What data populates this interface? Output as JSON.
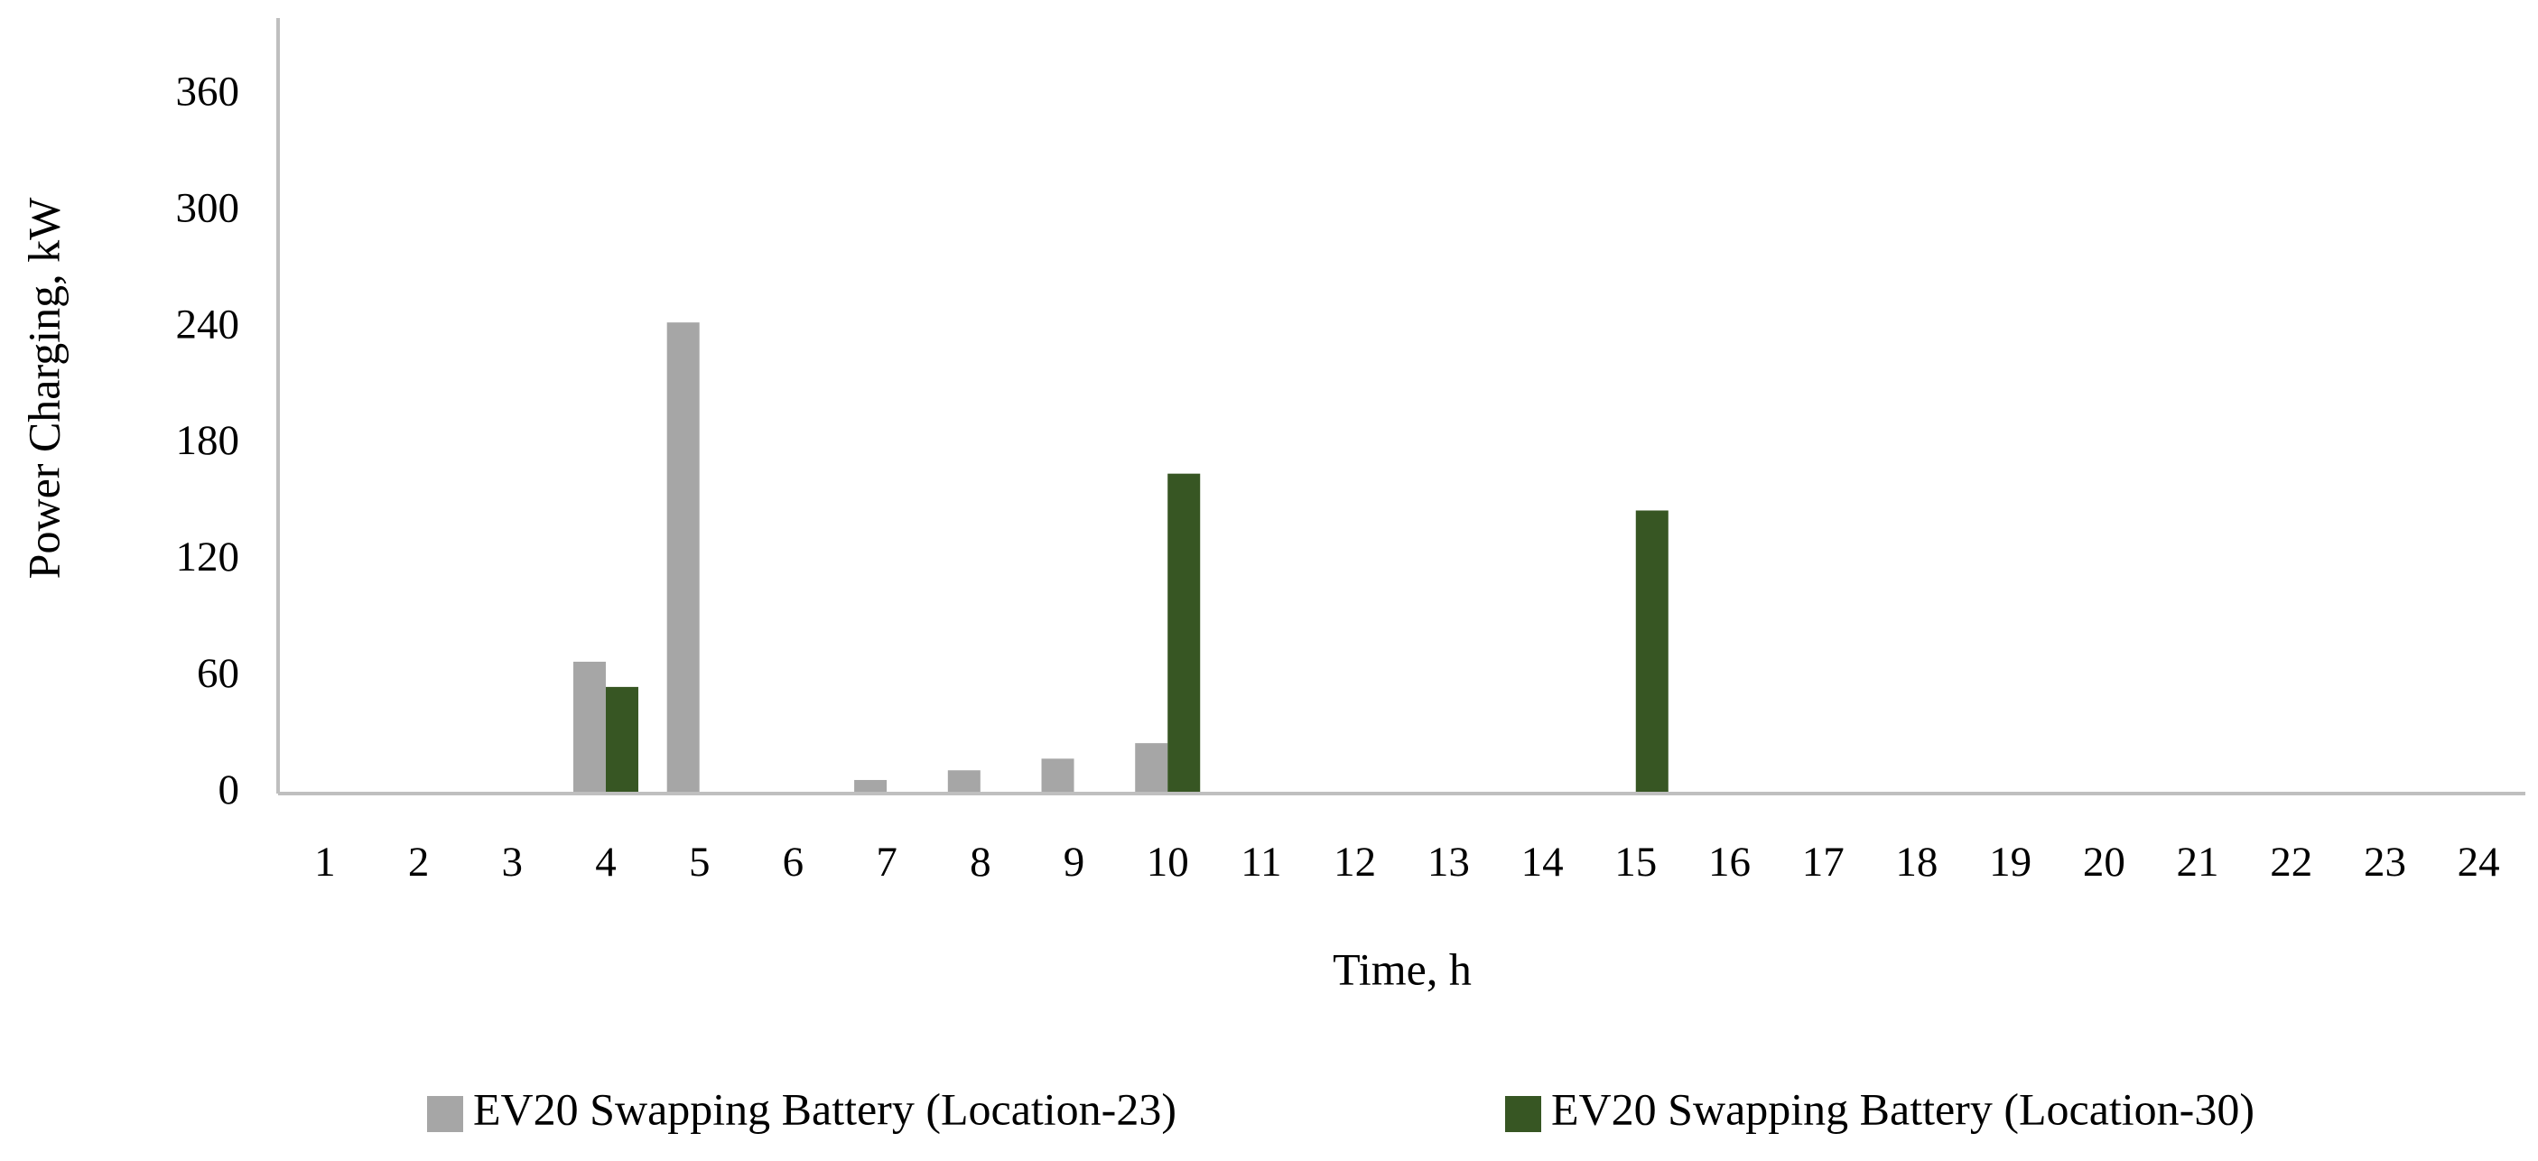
{
  "chart_data": {
    "type": "bar",
    "x_label": "Time, h",
    "y_label": "Power Charging, kW",
    "categories": [
      "1",
      "2",
      "3",
      "4",
      "5",
      "6",
      "7",
      "8",
      "9",
      "10",
      "11",
      "12",
      "13",
      "14",
      "15",
      "16",
      "17",
      "18",
      "19",
      "20",
      "21",
      "22",
      "23",
      "24"
    ],
    "series": [
      {
        "name": "EV20 Swapping Battery (Location-23)",
        "color": "#a6a6a6",
        "values": [
          0,
          0,
          0,
          68,
          243,
          0,
          7,
          12,
          18,
          26,
          0,
          0,
          0,
          0,
          0,
          0,
          0,
          0,
          0,
          0,
          0,
          0,
          0,
          0
        ]
      },
      {
        "name": "EV20 Swapping Battery (Location-30)",
        "color": "#375623",
        "values": [
          0,
          0,
          0,
          55,
          0,
          0,
          0,
          0,
          0,
          165,
          0,
          0,
          0,
          0,
          146,
          0,
          0,
          0,
          0,
          0,
          0,
          0,
          0,
          0
        ]
      }
    ],
    "ylim": [
      0,
      400
    ],
    "yticks": [
      0,
      60,
      120,
      180,
      240,
      300,
      360
    ],
    "grid": false,
    "legend": "bottom"
  }
}
